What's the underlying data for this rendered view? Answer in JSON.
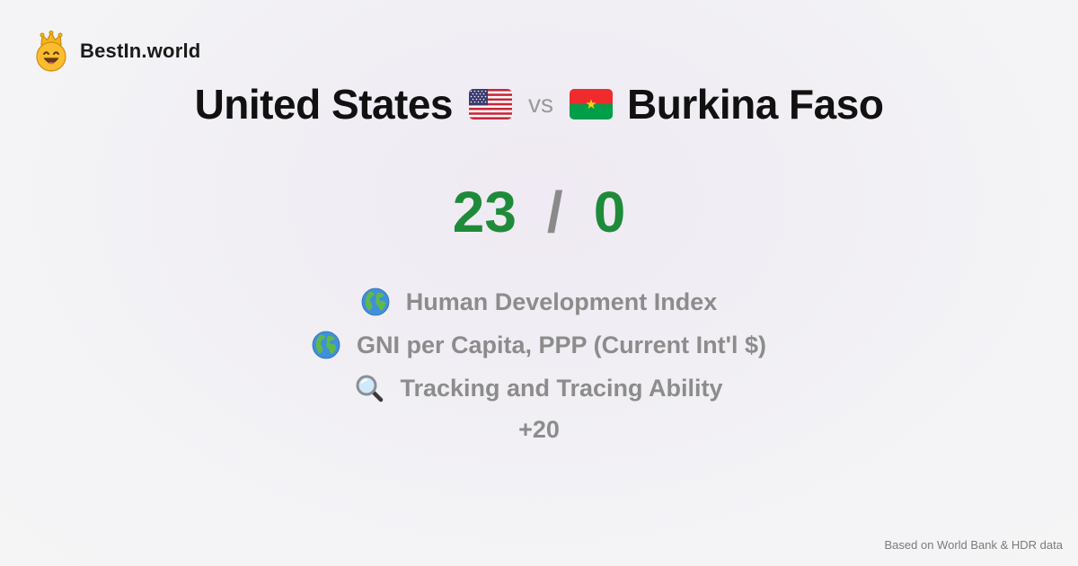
{
  "brand": {
    "name": "BestIn.world",
    "logo_icon": "smiling-face-crown-icon"
  },
  "comparison": {
    "left_country": "United States",
    "left_flag_icon": "us-flag-icon",
    "vs_label": "vs",
    "right_country": "Burkina Faso",
    "right_flag_icon": "burkina-faso-flag-icon"
  },
  "score": {
    "left": "23",
    "separator": "/",
    "right": "0",
    "color": "#1e8b3a"
  },
  "metrics": [
    {
      "icon": "globe-icon",
      "label": "Human Development Index"
    },
    {
      "icon": "globe-icon",
      "label": "GNI per Capita, PPP (Current Int'l $)"
    },
    {
      "icon": "magnifying-glass-icon",
      "label": "Tracking and Tracing Ability"
    }
  ],
  "more_label": "+20",
  "footer": {
    "source": "Based on World Bank & HDR data"
  }
}
